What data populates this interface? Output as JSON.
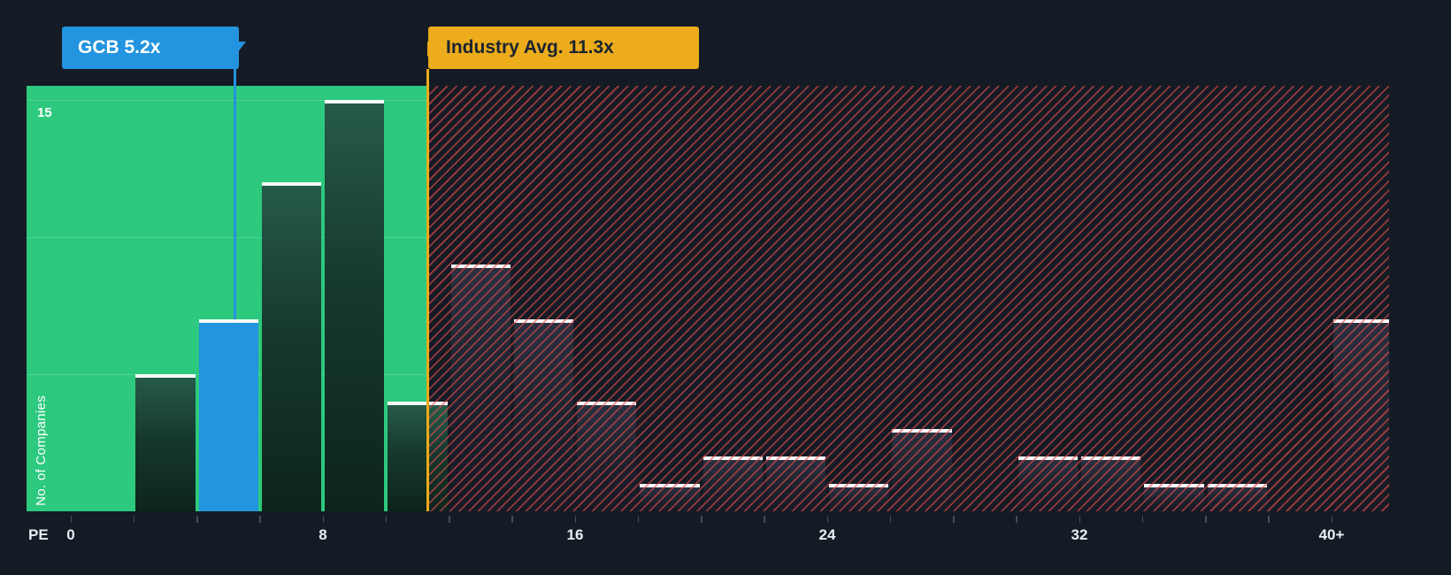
{
  "page": {
    "background": "#151B24"
  },
  "callouts": {
    "company": {
      "label": "GCB 5.2x",
      "color": "#2394DF",
      "text_color": "#FFFFFF"
    },
    "industry": {
      "label": "Industry Avg. 11.3x",
      "color": "#ECAC1B",
      "text_color": "#1B2330"
    }
  },
  "chart_data": {
    "type": "bar",
    "xlabel": "PE",
    "ylabel": "No. of Companies",
    "ylim": [
      0,
      15.5
    ],
    "xlim": [
      0,
      42
    ],
    "bin_width": 2,
    "bars": [
      {
        "pe_start": 2,
        "pe_end": 4,
        "count": 5
      },
      {
        "pe_start": 4,
        "pe_end": 6,
        "count": 7,
        "highlight": "company"
      },
      {
        "pe_start": 6,
        "pe_end": 8,
        "count": 12
      },
      {
        "pe_start": 8,
        "pe_end": 10,
        "count": 15
      },
      {
        "pe_start": 10,
        "pe_end": 12,
        "count": 4
      },
      {
        "pe_start": 12,
        "pe_end": 14,
        "count": 9
      },
      {
        "pe_start": 14,
        "pe_end": 16,
        "count": 7
      },
      {
        "pe_start": 16,
        "pe_end": 18,
        "count": 4
      },
      {
        "pe_start": 18,
        "pe_end": 20,
        "count": 1
      },
      {
        "pe_start": 20,
        "pe_end": 22,
        "count": 2
      },
      {
        "pe_start": 22,
        "pe_end": 24,
        "count": 2
      },
      {
        "pe_start": 24,
        "pe_end": 26,
        "count": 1
      },
      {
        "pe_start": 26,
        "pe_end": 28,
        "count": 3
      },
      {
        "pe_start": 28,
        "pe_end": 30,
        "count": 0
      },
      {
        "pe_start": 30,
        "pe_end": 32,
        "count": 2
      },
      {
        "pe_start": 32,
        "pe_end": 34,
        "count": 2
      },
      {
        "pe_start": 34,
        "pe_end": 36,
        "count": 1
      },
      {
        "pe_start": 36,
        "pe_end": 38,
        "count": 1
      },
      {
        "pe_start": 38,
        "pe_end": 40,
        "count": 0
      },
      {
        "pe_start": 40,
        "pe_end": 42,
        "count": 7,
        "bin_label": "40+"
      }
    ],
    "markers": [
      {
        "name": "company",
        "label": "GCB 5.2x",
        "value": 5.2,
        "color": "#2394DF"
      },
      {
        "name": "industry_average",
        "label": "Industry Avg. 11.3x",
        "value": 11.3,
        "color": "#ECAC1B"
      }
    ],
    "regions": [
      {
        "name": "below-industry-average",
        "pe_from": 0,
        "pe_to": 11.3,
        "fill": "#2DC97E",
        "style": "solid"
      },
      {
        "name": "above-industry-average",
        "pe_from": 11.3,
        "pe_to": 42,
        "stripe_color": "#E64C4C",
        "style": "hatched"
      }
    ],
    "y_gridlines": [
      5,
      10,
      15
    ],
    "y_tick_labels": [
      {
        "value": 15,
        "label": "15"
      }
    ],
    "x_tick_labels": [
      {
        "value": 0,
        "label": "0"
      },
      {
        "value": 8,
        "label": "8"
      },
      {
        "value": 16,
        "label": "16"
      },
      {
        "value": 24,
        "label": "24"
      },
      {
        "value": 32,
        "label": "32"
      },
      {
        "value": 40,
        "label": "40+"
      }
    ],
    "legend": "off",
    "grid": "subtle-horizontal-in-green-region"
  }
}
